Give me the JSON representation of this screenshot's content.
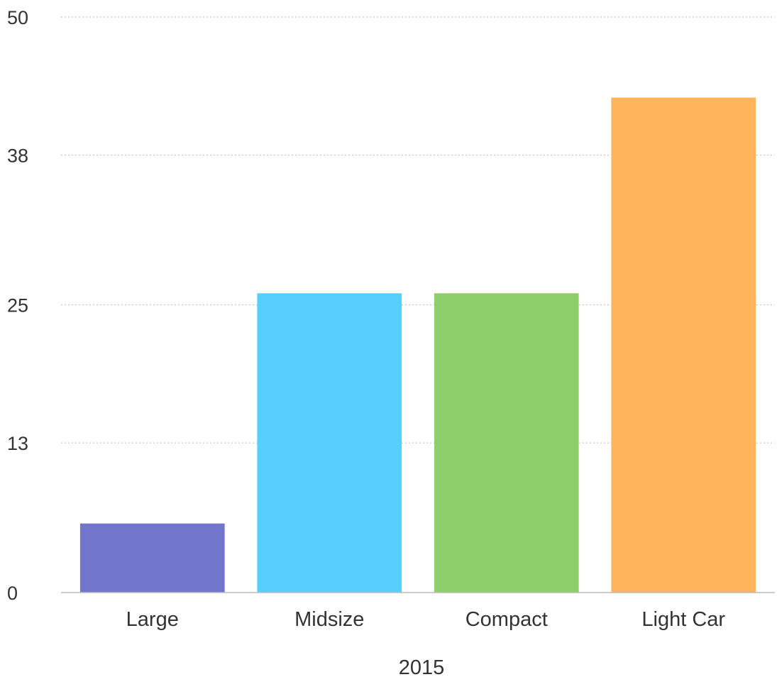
{
  "chart_data": {
    "type": "bar",
    "categories": [
      "Large",
      "Midsize",
      "Compact",
      "Light Car"
    ],
    "values": [
      6,
      26,
      26,
      43
    ],
    "colors": [
      "#7176cc",
      "#58cefc",
      "#8ecf6b",
      "#ffb45c"
    ],
    "xlabel": "2015",
    "ylabel": "",
    "yticks": [
      0,
      13,
      25,
      38,
      50
    ],
    "ylim": [
      0,
      50
    ],
    "grid": true,
    "grid_style": "dotted",
    "legend": "none"
  }
}
